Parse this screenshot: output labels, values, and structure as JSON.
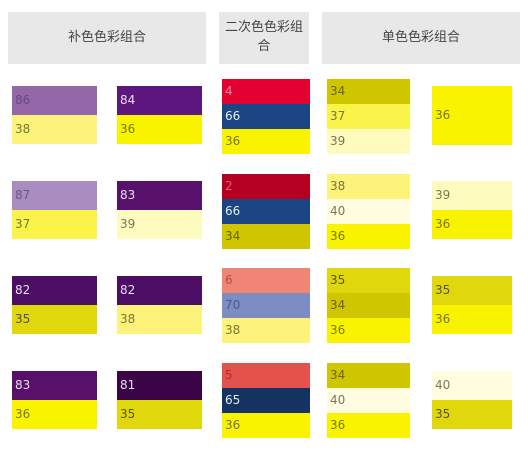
{
  "headers": {
    "complementary": "补色色彩组合",
    "secondary": "二次色色彩组合",
    "monochrome": "单色色彩组合"
  },
  "complementary": [
    {
      "row1": {
        "left": [
          {
            "label": "86",
            "color": "#9467a8",
            "text": "#6a4a80"
          },
          {
            "label": "38",
            "color": "#fdf27a",
            "text": "#777733"
          }
        ],
        "right": [
          {
            "label": "84",
            "color": "#5e167f",
            "text": "#e6e0f0"
          },
          {
            "label": "36",
            "color": "#f9f300",
            "text": "#777700"
          }
        ]
      },
      "row2": {
        "left": [
          {
            "label": "87",
            "color": "#a98cc0",
            "text": "#6a5a80"
          },
          {
            "label": "37",
            "color": "#faf44a",
            "text": "#777733"
          }
        ],
        "right": [
          {
            "label": "83",
            "color": "#58116b",
            "text": "#e6e0f0"
          },
          {
            "label": "39",
            "color": "#fefbbe",
            "text": "#777755"
          }
        ]
      },
      "row3": {
        "left": [
          {
            "label": "82",
            "color": "#4c0e65",
            "text": "#e6e0f0"
          },
          {
            "label": "35",
            "color": "#e0d80c",
            "text": "#555500"
          }
        ],
        "right": [
          {
            "label": "82",
            "color": "#4c0e65",
            "text": "#e6e0f0"
          },
          {
            "label": "38",
            "color": "#fdf27a",
            "text": "#777733"
          }
        ]
      },
      "row4": {
        "left": [
          {
            "label": "83",
            "color": "#58116b",
            "text": "#e6e0f0"
          },
          {
            "label": "36",
            "color": "#f9f300",
            "text": "#777700"
          }
        ],
        "right": [
          {
            "label": "81",
            "color": "#3a0447",
            "text": "#e6e0f0"
          },
          {
            "label": "35",
            "color": "#e0d80c",
            "text": "#555500"
          }
        ]
      }
    }
  ],
  "secondary": {
    "g1": [
      {
        "label": "4",
        "color": "#e40030",
        "text": "#ff8aa0"
      },
      {
        "label": "66",
        "color": "#1a4582",
        "text": "#e6ecf5"
      },
      {
        "label": "36",
        "color": "#f9f300",
        "text": "#777700"
      }
    ],
    "g2": [
      {
        "label": "2",
        "color": "#b60021",
        "text": "#e06070"
      },
      {
        "label": "66",
        "color": "#1a4582",
        "text": "#e6ecf5"
      },
      {
        "label": "34",
        "color": "#cfc600",
        "text": "#666600"
      }
    ],
    "g3": [
      {
        "label": "6",
        "color": "#f18575",
        "text": "#b05040"
      },
      {
        "label": "70",
        "color": "#7b8dc2",
        "text": "#4a5a8a"
      },
      {
        "label": "38",
        "color": "#fdf27a",
        "text": "#777733"
      }
    ],
    "g4": [
      {
        "label": "5",
        "color": "#e4524c",
        "text": "#b03030"
      },
      {
        "label": "65",
        "color": "#143362",
        "text": "#e6ecf5"
      },
      {
        "label": "36",
        "color": "#f9f300",
        "text": "#777700"
      }
    ]
  },
  "monochrome": {
    "g1": {
      "left": [
        {
          "label": "34",
          "color": "#cfc600",
          "text": "#666600"
        },
        {
          "label": "37",
          "color": "#faf44a",
          "text": "#777733"
        },
        {
          "label": "39",
          "color": "#fefbbe",
          "text": "#777755"
        }
      ],
      "right": [
        {
          "label": "36",
          "color": "#f9f300",
          "text": "#777700"
        }
      ]
    },
    "g2": {
      "left": [
        {
          "label": "38",
          "color": "#fdf27a",
          "text": "#777733"
        },
        {
          "label": "40",
          "color": "#fffce0",
          "text": "#777766"
        },
        {
          "label": "36",
          "color": "#f9f300",
          "text": "#777700"
        }
      ],
      "right": [
        {
          "label": "39",
          "color": "#fefbbe",
          "text": "#777755"
        },
        {
          "label": "36",
          "color": "#f9f300",
          "text": "#777700"
        }
      ]
    },
    "g3": {
      "left": [
        {
          "label": "35",
          "color": "#e0d80c",
          "text": "#555500"
        },
        {
          "label": "34",
          "color": "#cfc600",
          "text": "#666600"
        },
        {
          "label": "36",
          "color": "#f9f300",
          "text": "#777700"
        }
      ],
      "right": [
        {
          "label": "35",
          "color": "#e0d80c",
          "text": "#555500"
        },
        {
          "label": "36",
          "color": "#f9f300",
          "text": "#777700"
        }
      ]
    },
    "g4": {
      "left": [
        {
          "label": "34",
          "color": "#cfc600",
          "text": "#666600"
        },
        {
          "label": "40",
          "color": "#fffce0",
          "text": "#777766"
        },
        {
          "label": "36",
          "color": "#f9f300",
          "text": "#777700"
        }
      ],
      "right": [
        {
          "label": "40",
          "color": "#fffce0",
          "text": "#777766"
        },
        {
          "label": "35",
          "color": "#e0d80c",
          "text": "#555500"
        }
      ]
    }
  }
}
